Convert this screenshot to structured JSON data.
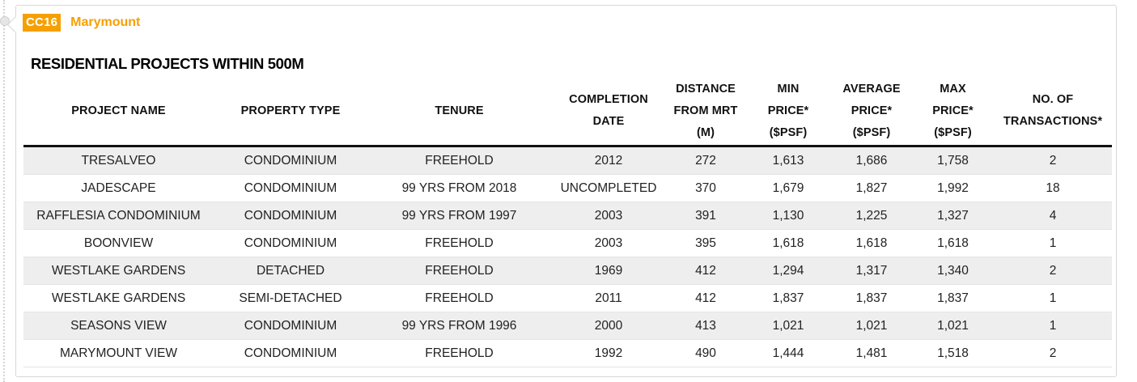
{
  "station": {
    "code": "CC16",
    "name": "Marymount"
  },
  "section_title": "RESIDENTIAL PROJECTS WITHIN 500M",
  "table": {
    "headers": [
      [
        "PROJECT NAME"
      ],
      [
        "PROPERTY TYPE"
      ],
      [
        "TENURE"
      ],
      [
        "COMPLETION",
        "DATE"
      ],
      [
        "DISTANCE",
        "FROM MRT",
        "(M)"
      ],
      [
        "MIN",
        "PRICE*",
        "($PSF)"
      ],
      [
        "AVERAGE",
        "PRICE*",
        "($PSF)"
      ],
      [
        "MAX",
        "PRICE*",
        "($PSF)"
      ],
      [
        "NO. OF",
        "TRANSACTIONS*"
      ]
    ],
    "rows": [
      [
        "TRESALVEO",
        "CONDOMINIUM",
        "FREEHOLD",
        "2012",
        "272",
        "1,613",
        "1,686",
        "1,758",
        "2"
      ],
      [
        "JADESCAPE",
        "CONDOMINIUM",
        "99 YRS FROM 2018",
        "UNCOMPLETED",
        "370",
        "1,679",
        "1,827",
        "1,992",
        "18"
      ],
      [
        "RAFFLESIA CONDOMINIUM",
        "CONDOMINIUM",
        "99 YRS FROM 1997",
        "2003",
        "391",
        "1,130",
        "1,225",
        "1,327",
        "4"
      ],
      [
        "BOONVIEW",
        "CONDOMINIUM",
        "FREEHOLD",
        "2003",
        "395",
        "1,618",
        "1,618",
        "1,618",
        "1"
      ],
      [
        "WESTLAKE GARDENS",
        "DETACHED",
        "FREEHOLD",
        "1969",
        "412",
        "1,294",
        "1,317",
        "1,340",
        "2"
      ],
      [
        "WESTLAKE GARDENS",
        "SEMI-DETACHED",
        "FREEHOLD",
        "2011",
        "412",
        "1,837",
        "1,837",
        "1,837",
        "1"
      ],
      [
        "SEASONS VIEW",
        "CONDOMINIUM",
        "99 YRS FROM 1996",
        "2000",
        "413",
        "1,021",
        "1,021",
        "1,021",
        "1"
      ],
      [
        "MARYMOUNT VIEW",
        "CONDOMINIUM",
        "FREEHOLD",
        "1992",
        "490",
        "1,444",
        "1,481",
        "1,518",
        "2"
      ]
    ]
  },
  "colors": {
    "accent": "#f5a000",
    "row_stripe": "#eeeeee",
    "header_rule": "#111111"
  }
}
